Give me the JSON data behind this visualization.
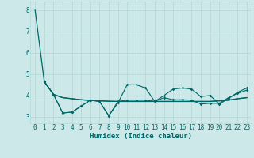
{
  "xlabel": "Humidex (Indice chaleur)",
  "bg_color": "#cce8e8",
  "grid_color": "#b8d8d8",
  "line_color": "#006666",
  "xlim": [
    -0.5,
    23.5
  ],
  "ylim": [
    2.7,
    8.4
  ],
  "yticks": [
    3,
    4,
    5,
    6,
    7,
    8
  ],
  "xticks": [
    0,
    1,
    2,
    3,
    4,
    5,
    6,
    7,
    8,
    9,
    10,
    11,
    12,
    13,
    14,
    15,
    16,
    17,
    18,
    19,
    20,
    21,
    22,
    23
  ],
  "line1_x": [
    0,
    1,
    2,
    3,
    4,
    5,
    6,
    7,
    8,
    9,
    10,
    11,
    12,
    13,
    14,
    15,
    16,
    17,
    18,
    19,
    20,
    21,
    22,
    23
  ],
  "line1_y": [
    8.0,
    4.65,
    4.05,
    3.9,
    3.85,
    3.8,
    3.77,
    3.75,
    3.73,
    3.72,
    3.72,
    3.72,
    3.72,
    3.72,
    3.72,
    3.72,
    3.72,
    3.72,
    3.72,
    3.72,
    3.75,
    3.78,
    3.85,
    3.9
  ],
  "line2_x": [
    1,
    2,
    3,
    4,
    5,
    6,
    7,
    8,
    9,
    10,
    11,
    12,
    13,
    14,
    15,
    16,
    17,
    18,
    19,
    20,
    21,
    22,
    23
  ],
  "line2_y": [
    4.65,
    4.05,
    3.18,
    3.22,
    3.5,
    3.78,
    3.72,
    3.05,
    3.65,
    4.5,
    4.5,
    4.35,
    3.72,
    4.0,
    4.3,
    4.35,
    4.3,
    3.95,
    4.0,
    3.6,
    3.85,
    4.15,
    4.35
  ],
  "line3_x": [
    1,
    2,
    3,
    4,
    5,
    6,
    7,
    8,
    9,
    10,
    11,
    12,
    13,
    14,
    15,
    16,
    17,
    18,
    19,
    20,
    21,
    22,
    23
  ],
  "line3_y": [
    4.65,
    4.05,
    3.18,
    3.22,
    3.5,
    3.78,
    3.72,
    3.05,
    3.72,
    3.78,
    3.78,
    3.78,
    3.72,
    3.9,
    3.8,
    3.8,
    3.78,
    3.6,
    3.63,
    3.63,
    3.9,
    4.1,
    4.25
  ],
  "line4_x": [
    1,
    2,
    3,
    4,
    5,
    6,
    7,
    8,
    9,
    10,
    11,
    12,
    13,
    14,
    15,
    16,
    17,
    18,
    19,
    20,
    21,
    22,
    23
  ],
  "line4_y": [
    4.65,
    4.05,
    3.9,
    3.85,
    3.8,
    3.77,
    3.75,
    3.73,
    3.72,
    3.72,
    3.72,
    3.72,
    3.72,
    3.72,
    3.72,
    3.72,
    3.72,
    3.72,
    3.72,
    3.75,
    3.78,
    3.85,
    3.9
  ]
}
